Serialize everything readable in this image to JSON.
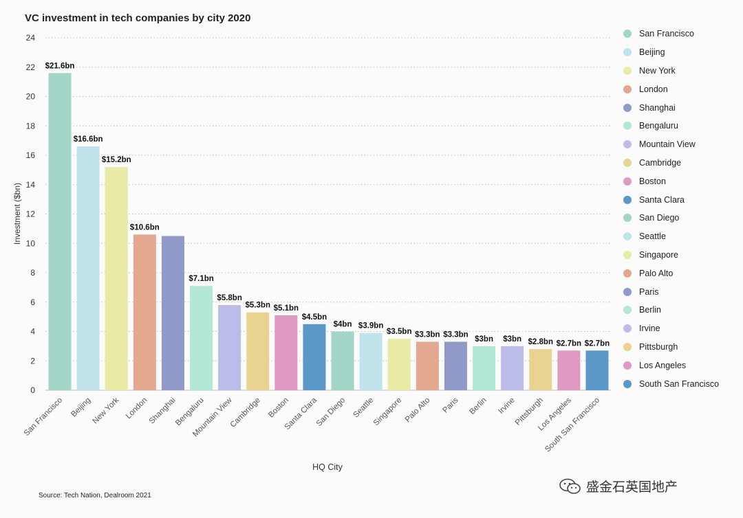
{
  "title": "VC investment in tech companies by city 2020",
  "source": "Source: Tech Nation, Dealroom 2021",
  "watermark": "盛金石英国地产",
  "chart_data": {
    "type": "bar",
    "title": "VC investment in tech companies by city 2020",
    "xlabel": "HQ City",
    "ylabel": "Investment ($bn)",
    "ylim": [
      0,
      24
    ],
    "yticks": [
      0,
      2,
      4,
      6,
      8,
      10,
      12,
      14,
      16,
      18,
      20,
      22,
      24
    ],
    "grid": true,
    "legend_position": "right",
    "categories": [
      "San Francisco",
      "Beijing",
      "New York",
      "London",
      "Shanghai",
      "Bengaluru",
      "Mountain View",
      "Cambridge",
      "Boston",
      "Santa Clara",
      "San Diego",
      "Seattle",
      "Singapore",
      "Palo Alto",
      "Paris",
      "Berlin",
      "Irvine",
      "Pittsburgh",
      "Los Angeles",
      "South San Francisco"
    ],
    "values": [
      21.6,
      16.6,
      15.2,
      10.6,
      10.5,
      7.1,
      5.8,
      5.3,
      5.1,
      4.5,
      4.0,
      3.9,
      3.5,
      3.3,
      3.3,
      3.0,
      3.0,
      2.8,
      2.7,
      2.7
    ],
    "data_labels": [
      "$21.6bn",
      "$16.6bn",
      "$15.2bn",
      "$10.6bn",
      "",
      "$7.1bn",
      "$5.8bn",
      "$5.3bn",
      "$5.1bn",
      "$4.5bn",
      "$4bn",
      "$3.9bn",
      "$3.5bn",
      "$3.3bn",
      "$3.3bn",
      "$3bn",
      "$3bn",
      "$2.8bn",
      "$2.7bn",
      "$2.7bn"
    ],
    "colors": [
      "#a3d6c8",
      "#c1e4ec",
      "#e8eaa6",
      "#e3a88f",
      "#9099c7",
      "#b3e8d4",
      "#bcbce9",
      "#e8d490",
      "#e099c0",
      "#5b97c7",
      "#a3d6c8",
      "#c1e4ec",
      "#e8eaa6",
      "#e3a88f",
      "#9099c7",
      "#b3e8d4",
      "#bcbce9",
      "#e8d490",
      "#e099c0",
      "#5b97c7"
    ]
  }
}
